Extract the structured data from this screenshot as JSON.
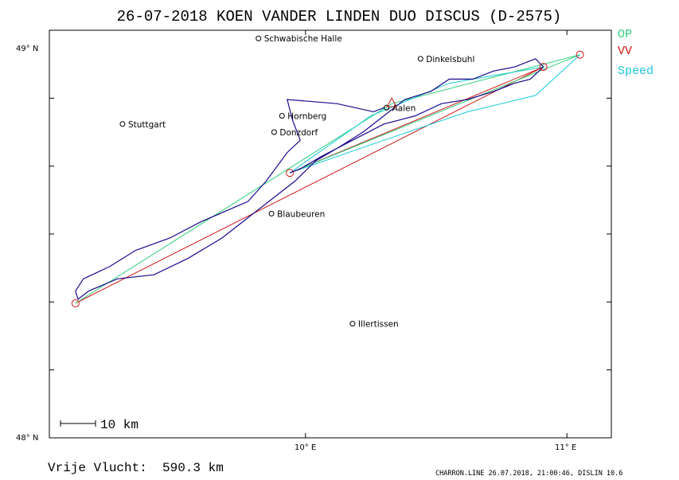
{
  "title": "26-07-2018   KOEN VANDER LINDEN    DUO DISCUS (D-2575)",
  "legend": [
    {
      "label": "OP",
      "color": "#2fd07a"
    },
    {
      "label": "VV",
      "color": "#d01818"
    },
    {
      "label": "Speed",
      "color": "#1ccad8"
    }
  ],
  "axes": {
    "y_top": "49° N",
    "y_bottom": "48° N",
    "x_left": "10° E",
    "x_right": "11° E"
  },
  "scale": {
    "label": "10 km"
  },
  "footer": {
    "distance_label": "Vrije Vlucht:",
    "distance_value": "590.3 km",
    "credit": "CHARRON.LINE 26.07.2018, 21:00:46, DISLIN 10.6"
  },
  "colors": {
    "track": "#1a0a8c",
    "op": "#2fd07a",
    "vv": "#d01818",
    "speed": "#1ccad8",
    "frame": "#000000"
  },
  "places": [
    {
      "name": "Schwabische Halle",
      "lon": 9.82,
      "lat": 48.98
    },
    {
      "name": "Dinkelsbuhl",
      "lon": 10.44,
      "lat": 48.93
    },
    {
      "name": "Stuttgart",
      "lon": 9.3,
      "lat": 48.77
    },
    {
      "name": "Hornberg",
      "lon": 9.91,
      "lat": 48.79
    },
    {
      "name": "Donzdorf",
      "lon": 9.88,
      "lat": 48.75
    },
    {
      "name": "Aalen",
      "lon": 10.31,
      "lat": 48.81
    },
    {
      "name": "Blaubeuren",
      "lon": 9.87,
      "lat": 48.55
    },
    {
      "name": "Illertissen",
      "lon": 10.18,
      "lat": 48.28
    }
  ],
  "turnpoints": [
    {
      "lon": 9.12,
      "lat": 48.33
    },
    {
      "lon": 9.94,
      "lat": 48.65
    },
    {
      "lon": 10.91,
      "lat": 48.91
    },
    {
      "lon": 11.05,
      "lat": 48.94
    }
  ],
  "start": {
    "lon": 10.33,
    "lat": 48.82
  },
  "routes": {
    "op": [
      [
        9.12,
        48.33
      ],
      [
        10.33,
        48.82
      ],
      [
        11.05,
        48.94
      ],
      [
        9.94,
        48.65
      ]
    ],
    "vv": [
      [
        9.12,
        48.33
      ],
      [
        10.91,
        48.91
      ],
      [
        9.94,
        48.65
      ]
    ],
    "speed": [
      [
        11.05,
        48.94
      ],
      [
        10.88,
        48.84
      ],
      [
        10.62,
        48.8
      ],
      [
        10.3,
        48.73
      ],
      [
        9.94,
        48.65
      ],
      [
        10.25,
        48.79
      ],
      [
        10.55,
        48.87
      ],
      [
        10.91,
        48.91
      ]
    ]
  },
  "track": [
    [
      10.3,
      48.81
    ],
    [
      10.26,
      48.8
    ],
    [
      10.12,
      48.82
    ],
    [
      9.93,
      48.83
    ],
    [
      9.95,
      48.78
    ],
    [
      9.98,
      48.73
    ],
    [
      9.93,
      48.7
    ],
    [
      9.85,
      48.63
    ],
    [
      9.78,
      48.58
    ],
    [
      9.6,
      48.53
    ],
    [
      9.48,
      48.49
    ],
    [
      9.35,
      48.46
    ],
    [
      9.25,
      48.42
    ],
    [
      9.15,
      48.39
    ],
    [
      9.12,
      48.36
    ],
    [
      9.13,
      48.34
    ],
    [
      9.17,
      48.36
    ],
    [
      9.28,
      48.39
    ],
    [
      9.42,
      48.4
    ],
    [
      9.55,
      48.44
    ],
    [
      9.68,
      48.49
    ],
    [
      9.8,
      48.55
    ],
    [
      9.88,
      48.59
    ],
    [
      9.96,
      48.63
    ],
    [
      10.04,
      48.68
    ],
    [
      10.12,
      48.71
    ],
    [
      10.22,
      48.75
    ],
    [
      10.3,
      48.79
    ],
    [
      10.38,
      48.83
    ],
    [
      10.48,
      48.85
    ],
    [
      10.55,
      48.88
    ],
    [
      10.64,
      48.88
    ],
    [
      10.72,
      48.9
    ],
    [
      10.8,
      48.91
    ],
    [
      10.88,
      48.93
    ],
    [
      10.91,
      48.91
    ],
    [
      10.86,
      48.88
    ],
    [
      10.8,
      48.87
    ],
    [
      10.72,
      48.85
    ],
    [
      10.62,
      48.83
    ],
    [
      10.52,
      48.82
    ],
    [
      10.42,
      48.79
    ],
    [
      10.3,
      48.77
    ],
    [
      10.18,
      48.73
    ],
    [
      10.06,
      48.69
    ],
    [
      9.98,
      48.66
    ],
    [
      9.94,
      48.65
    ]
  ],
  "map_bounds": {
    "lon_min": 9.02,
    "lon_max": 11.17,
    "lat_min": 48.0,
    "lat_max": 49.0
  }
}
